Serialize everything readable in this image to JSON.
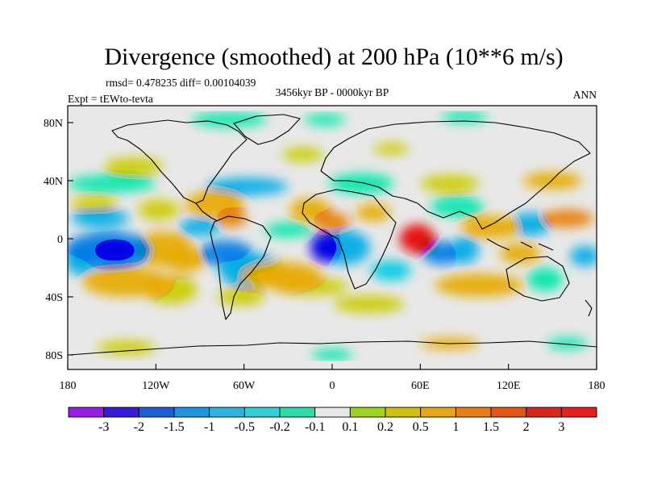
{
  "chart_data": {
    "type": "heatmap",
    "title": "Divergence (smoothed) at 200 hPa (10**6 m/s)",
    "stats_text": "rmsd= 0.478235 diff= 0.00104039",
    "experiment_text": "Expt = tEWto-tevta",
    "period_text": "3456kyr BP - 0000kyr BP",
    "season_text": "ANN",
    "xlim": [
      -180,
      180
    ],
    "ylim": [
      -90,
      90
    ],
    "x_ticks": [
      {
        "value": -180,
        "label": "180"
      },
      {
        "value": -120,
        "label": "120W"
      },
      {
        "value": -60,
        "label": "60W"
      },
      {
        "value": 0,
        "label": "0"
      },
      {
        "value": 60,
        "label": "60E"
      },
      {
        "value": 120,
        "label": "120E"
      },
      {
        "value": 180,
        "label": "180"
      }
    ],
    "y_ticks": [
      {
        "value": 80,
        "label": "80N"
      },
      {
        "value": 40,
        "label": "40N"
      },
      {
        "value": 0,
        "label": "0"
      },
      {
        "value": -40,
        "label": "40S"
      },
      {
        "value": -80,
        "label": "80S"
      }
    ],
    "colorbar": {
      "levels": [
        -3,
        -2,
        -1.5,
        -1,
        -0.5,
        -0.2,
        -0.1,
        0.1,
        0.2,
        0.5,
        1,
        1.5,
        2,
        3
      ],
      "labels": [
        "-3",
        "-2",
        "-1.5",
        "-1",
        "-0.5",
        "-0.2",
        "-0.1",
        "0.1",
        "0.2",
        "0.5",
        "1",
        "1.5",
        "2",
        "3"
      ],
      "colors": [
        "#9b1de5",
        "#3b1bd8",
        "#1e5fd6",
        "#1f95e0",
        "#2fb4e2",
        "#34d0d8",
        "#2fdca8",
        "#e8e8e8",
        "#9fd323",
        "#cfbf17",
        "#e8a61a",
        "#e97d19",
        "#e2561a",
        "#d8271c",
        "#e81f1f"
      ]
    },
    "anomalies": [
      {
        "lon": -148,
        "lat": -8,
        "rlon": 15,
        "rlat": 7,
        "value": -2.6
      },
      {
        "lon": -152,
        "lat": -8,
        "rlon": 30,
        "rlat": 13,
        "value": -1.2
      },
      {
        "lon": -158,
        "lat": 14,
        "rlon": 20,
        "rlat": 6,
        "value": -0.6
      },
      {
        "lon": -172,
        "lat": -14,
        "rlon": 10,
        "rlat": 11,
        "value": -0.6
      },
      {
        "lon": -115,
        "lat": -7,
        "rlon": 20,
        "rlat": 12,
        "value": 0.55
      },
      {
        "lon": -100,
        "lat": -14,
        "rlon": 14,
        "rlat": 9,
        "value": 0.9
      },
      {
        "lon": -140,
        "lat": -30,
        "rlon": 30,
        "rlat": 10,
        "value": 0.5
      },
      {
        "lon": -110,
        "lat": -35,
        "rlon": 18,
        "rlat": 10,
        "value": 0.4
      },
      {
        "lon": -162,
        "lat": 24,
        "rlon": 16,
        "rlat": 5,
        "value": 0.4
      },
      {
        "lon": -118,
        "lat": 20,
        "rlon": 14,
        "rlat": 7,
        "value": 0.3
      },
      {
        "lon": -80,
        "lat": 24,
        "rlon": 20,
        "rlat": 9,
        "value": 0.8
      },
      {
        "lon": -68,
        "lat": 14,
        "rlon": 10,
        "rlat": 6,
        "value": 1.1
      },
      {
        "lon": -90,
        "lat": 8,
        "rlon": 14,
        "rlat": 6,
        "value": -0.6
      },
      {
        "lon": -58,
        "lat": 36,
        "rlon": 28,
        "rlat": 6,
        "value": -0.6
      },
      {
        "lon": -72,
        "lat": -10,
        "rlon": 18,
        "rlat": 9,
        "value": -1.1
      },
      {
        "lon": -55,
        "lat": -22,
        "rlon": 22,
        "rlat": 12,
        "value": -0.6
      },
      {
        "lon": -62,
        "lat": -40,
        "rlon": 16,
        "rlat": 6,
        "value": 0.3
      },
      {
        "lon": -35,
        "lat": -25,
        "rlon": 28,
        "rlat": 9,
        "value": 0.6
      },
      {
        "lon": -15,
        "lat": -33,
        "rlon": 26,
        "rlat": 6,
        "value": 0.2
      },
      {
        "lon": -5,
        "lat": -6,
        "rlon": 10,
        "rlat": 10,
        "value": -2.5
      },
      {
        "lon": 8,
        "lat": -6,
        "rlon": 18,
        "rlat": 12,
        "value": -1.0
      },
      {
        "lon": -30,
        "lat": 6,
        "rlon": 16,
        "rlat": 5,
        "value": -0.2
      },
      {
        "lon": 0,
        "lat": 12,
        "rlon": 12,
        "rlat": 6,
        "value": 1.4
      },
      {
        "lon": -15,
        "lat": 20,
        "rlon": 14,
        "rlat": 8,
        "value": 0.6
      },
      {
        "lon": 28,
        "lat": 18,
        "rlon": 12,
        "rlat": 6,
        "value": 0.5
      },
      {
        "lon": 58,
        "lat": 0,
        "rlon": 12,
        "rlat": 10,
        "value": 2.2
      },
      {
        "lon": 75,
        "lat": -10,
        "rlon": 14,
        "rlat": 8,
        "value": -1.2
      },
      {
        "lon": 90,
        "lat": -8,
        "rlon": 10,
        "rlat": 9,
        "value": -0.6
      },
      {
        "lon": 108,
        "lat": 8,
        "rlon": 20,
        "rlat": 8,
        "value": 0.9
      },
      {
        "lon": 85,
        "lat": 22,
        "rlon": 18,
        "rlat": 7,
        "value": -0.2
      },
      {
        "lon": 135,
        "lat": 10,
        "rlon": 14,
        "rlat": 8,
        "value": -0.6
      },
      {
        "lon": 128,
        "lat": -10,
        "rlon": 14,
        "rlat": 7,
        "value": 0.8
      },
      {
        "lon": 145,
        "lat": -28,
        "rlon": 12,
        "rlat": 8,
        "value": -0.2
      },
      {
        "lon": 100,
        "lat": -32,
        "rlon": 30,
        "rlat": 8,
        "value": 0.6
      },
      {
        "lon": 160,
        "lat": 14,
        "rlon": 18,
        "rlat": 6,
        "value": 1.0
      },
      {
        "lon": 172,
        "lat": -12,
        "rlon": 10,
        "rlat": 7,
        "value": -0.6
      },
      {
        "lon": 40,
        "lat": -22,
        "rlon": 14,
        "rlat": 7,
        "value": -0.3
      },
      {
        "lon": 25,
        "lat": -45,
        "rlon": 24,
        "rlat": 6,
        "value": 0.2
      },
      {
        "lon": -150,
        "lat": 38,
        "rlon": 30,
        "rlat": 6,
        "value": -0.2
      },
      {
        "lon": -135,
        "lat": 50,
        "rlon": 20,
        "rlat": 6,
        "value": 0.2
      },
      {
        "lon": 20,
        "lat": 38,
        "rlon": 22,
        "rlat": 7,
        "value": -0.2
      },
      {
        "lon": 80,
        "lat": 38,
        "rlon": 20,
        "rlat": 6,
        "value": 0.2
      },
      {
        "lon": 150,
        "lat": 40,
        "rlon": 20,
        "rlat": 6,
        "value": 0.6
      },
      {
        "lon": -20,
        "lat": 58,
        "rlon": 14,
        "rlat": 5,
        "value": 0.2
      },
      {
        "lon": 40,
        "lat": 62,
        "rlon": 12,
        "rlat": 4,
        "value": 0.2
      },
      {
        "lon": -70,
        "lat": 82,
        "rlon": 26,
        "rlat": 5,
        "value": -0.2
      },
      {
        "lon": -5,
        "lat": 82,
        "rlon": 14,
        "rlat": 4,
        "value": -0.2
      },
      {
        "lon": 90,
        "lat": 84,
        "rlon": 16,
        "rlat": 4,
        "value": -0.2
      },
      {
        "lon": -140,
        "lat": -75,
        "rlon": 20,
        "rlat": 5,
        "value": 0.2
      },
      {
        "lon": 0,
        "lat": -80,
        "rlon": 14,
        "rlat": 4,
        "value": -0.2
      },
      {
        "lon": 80,
        "lat": -72,
        "rlon": 20,
        "rlat": 4,
        "value": 0.5
      },
      {
        "lon": 160,
        "lat": -72,
        "rlon": 14,
        "rlat": 4,
        "value": -0.2
      }
    ]
  }
}
